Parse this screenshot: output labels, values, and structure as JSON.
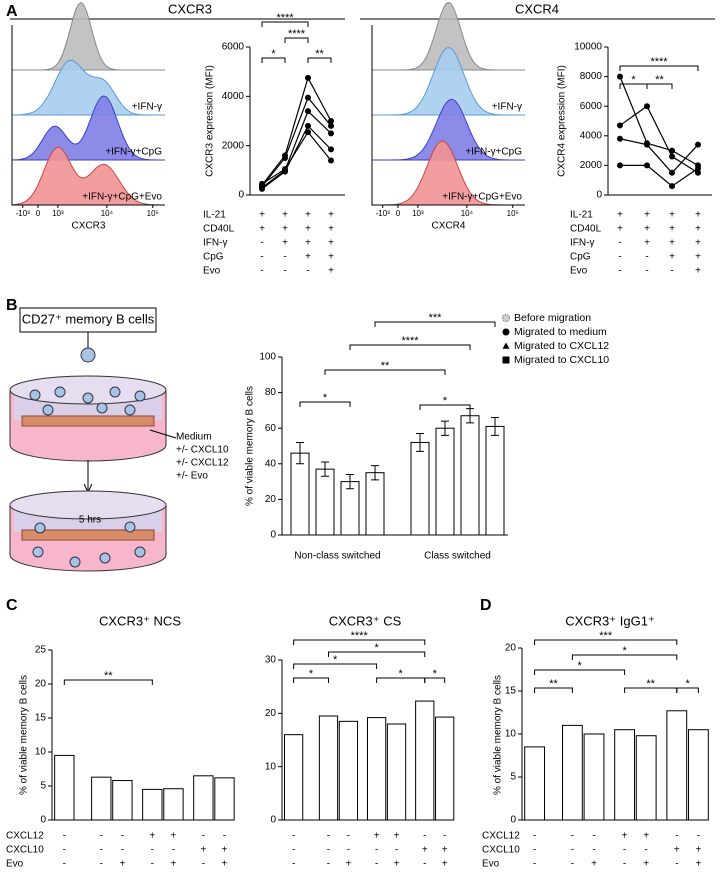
{
  "panel_labels": [
    "A",
    "B",
    "C",
    "D"
  ],
  "flow": [
    {
      "title": "CXCR3",
      "axis_label": "CXCR3",
      "ticks": [
        "-10³",
        "0",
        "10³",
        "10⁴",
        "10⁵"
      ],
      "labels": [
        "+IFN-γ",
        "+IFN-γ+CpG",
        "+IFN-γ+CpG+Evo"
      ]
    },
    {
      "title": "CXCR4",
      "axis_label": "CXCR4",
      "ticks": [
        "-10³",
        "0",
        "10³",
        "10⁴",
        "10⁵"
      ],
      "labels": [
        "+IFN-γ",
        "+IFN-γ+CpG",
        "+IFN-γ+CpG+Evo"
      ]
    }
  ],
  "diagram": {
    "box": "CD27⁺ memory B cells",
    "media": [
      "Medium",
      "+/- CXCL10",
      "+/- CXCL12",
      "+/- Evo"
    ],
    "time": "5 hrs"
  },
  "chart_data": [
    {
      "type": "line",
      "ylabel": "CXCR3 expression (MFI)",
      "ylim": [
        0,
        6000
      ],
      "yticks": [
        0,
        2000,
        4000,
        6000
      ],
      "conditions": [
        {
          "label": "IL-21",
          "marks": [
            "+",
            "+",
            "+",
            "+"
          ]
        },
        {
          "label": "CD40L",
          "marks": [
            "+",
            "+",
            "+",
            "+"
          ]
        },
        {
          "label": "IFN-γ",
          "marks": [
            "-",
            "+",
            "+",
            "+"
          ]
        },
        {
          "label": "CpG",
          "marks": [
            "-",
            "-",
            "+",
            "+"
          ]
        },
        {
          "label": "Evo",
          "marks": [
            "-",
            "-",
            "-",
            "+"
          ]
        }
      ],
      "series": [
        {
          "color": "#000000",
          "values": [
            400,
            1600,
            4750,
            3000
          ]
        },
        {
          "color": "#000000",
          "values": [
            350,
            1500,
            3950,
            2800
          ]
        },
        {
          "color": "#000000",
          "values": [
            300,
            1000,
            3400,
            2500
          ]
        },
        {
          "color": "#000000",
          "values": [
            250,
            950,
            2800,
            1850
          ]
        },
        {
          "color": "#000000",
          "values": [
            450,
            1050,
            2550,
            1400
          ]
        }
      ],
      "significance": [
        "****",
        "****",
        "*",
        "**"
      ]
    },
    {
      "type": "line",
      "ylabel": "CXCR4 expression (MFI)",
      "ylim": [
        0,
        10000
      ],
      "yticks": [
        0,
        2000,
        4000,
        6000,
        8000,
        10000
      ],
      "conditions": [
        {
          "label": "IL-21",
          "marks": [
            "+",
            "+",
            "+",
            "+"
          ]
        },
        {
          "label": "CD40L",
          "marks": [
            "+",
            "+",
            "+",
            "+"
          ]
        },
        {
          "label": "IFN-γ",
          "marks": [
            "-",
            "+",
            "+",
            "+"
          ]
        },
        {
          "label": "CpG",
          "marks": [
            "-",
            "-",
            "+",
            "+"
          ]
        },
        {
          "label": "Evo",
          "marks": [
            "-",
            "-",
            "-",
            "+"
          ]
        }
      ],
      "series": [
        {
          "color": "#000000",
          "values": [
            8000,
            3500,
            3000,
            2000
          ]
        },
        {
          "color": "#000000",
          "values": [
            4700,
            6000,
            2600,
            1500
          ]
        },
        {
          "color": "#000000",
          "values": [
            3800,
            3400,
            1500,
            3400
          ]
        },
        {
          "color": "#000000",
          "values": [
            2000,
            2000,
            600,
            1800
          ]
        }
      ],
      "significance": [
        "****",
        "*",
        "**"
      ]
    },
    {
      "type": "bar",
      "ylabel": "% of viable memory B cells",
      "ylim": [
        0,
        100
      ],
      "yticks": [
        0,
        20,
        40,
        60,
        80,
        100
      ],
      "categories": [
        "Non-class switched",
        "Class switched"
      ],
      "series": [
        {
          "name": "Before migration",
          "marker": "circle-gray",
          "values": [
            46,
            52
          ],
          "errors": [
            6,
            5
          ]
        },
        {
          "name": "Migrated to medium",
          "marker": "circle",
          "values": [
            37,
            60
          ],
          "errors": [
            4,
            4
          ]
        },
        {
          "name": "Migrated to CXCL12",
          "marker": "triangle",
          "values": [
            30,
            67
          ],
          "errors": [
            4,
            4
          ]
        },
        {
          "name": "Migrated to CXCL10",
          "marker": "square",
          "values": [
            35,
            61
          ],
          "errors": [
            4,
            5
          ]
        }
      ],
      "significance": [
        "***",
        "****",
        "**",
        "*",
        "*"
      ]
    },
    {
      "type": "bar",
      "title": "CXCR3⁺ NCS",
      "ylabel": "% of viable memory B cells",
      "ylim": [
        0,
        25
      ],
      "yticks": [
        0,
        5,
        10,
        15,
        20,
        25
      ],
      "values": [
        9.5,
        6.3,
        5.8,
        4.5,
        4.6,
        6.5,
        6.2
      ],
      "conditions": [
        {
          "label": "CXCL12",
          "marks": [
            "-",
            "-",
            "-",
            "+",
            "+",
            "-",
            "-"
          ]
        },
        {
          "label": "CXCL10",
          "marks": [
            "-",
            "-",
            "-",
            "-",
            "-",
            "+",
            "+"
          ]
        },
        {
          "label": "Evo",
          "marks": [
            "-",
            "-",
            "+",
            "-",
            "+",
            "-",
            "+"
          ]
        }
      ],
      "significance": [
        "**"
      ]
    },
    {
      "type": "bar",
      "title": "CXCR3⁺ CS",
      "ylim": [
        0,
        30
      ],
      "yticks": [
        0,
        10,
        20,
        30
      ],
      "values": [
        16,
        19.5,
        18.5,
        19.2,
        18,
        22.3,
        19.3
      ],
      "conditions": [
        {
          "marks": [
            "-",
            "-",
            "-",
            "+",
            "+",
            "-",
            "-"
          ]
        },
        {
          "marks": [
            "-",
            "-",
            "-",
            "-",
            "-",
            "+",
            "+"
          ]
        },
        {
          "marks": [
            "-",
            "-",
            "+",
            "-",
            "+",
            "-",
            "+"
          ]
        }
      ],
      "significance": [
        "****",
        "*",
        "*",
        "*",
        "*",
        "*"
      ]
    },
    {
      "type": "bar",
      "title": "CXCR3⁺ IgG1⁺",
      "ylabel": "% of viable memory B cells",
      "ylim": [
        0,
        20
      ],
      "yticks": [
        0,
        5,
        10,
        15,
        20
      ],
      "values": [
        8.5,
        11,
        10,
        10.5,
        9.8,
        12.7,
        10.5
      ],
      "conditions": [
        {
          "label": "CXCL12",
          "marks": [
            "-",
            "-",
            "-",
            "+",
            "+",
            "-",
            "-"
          ]
        },
        {
          "label": "CXCL10",
          "marks": [
            "-",
            "-",
            "-",
            "-",
            "-",
            "+",
            "+"
          ]
        },
        {
          "label": "Evo",
          "marks": [
            "-",
            "-",
            "+",
            "-",
            "+",
            "-",
            "+"
          ]
        }
      ],
      "significance": [
        "***",
        "*",
        "*",
        "**",
        "**",
        "*"
      ]
    }
  ]
}
